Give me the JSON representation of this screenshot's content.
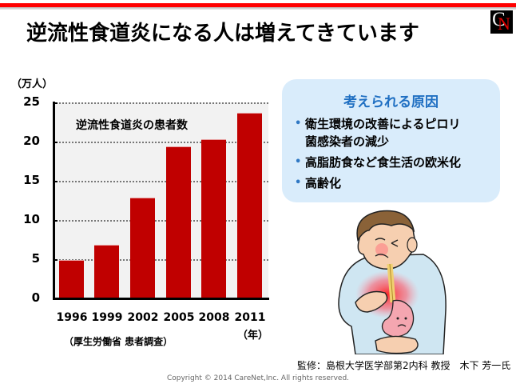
{
  "header": {
    "title": "逆流性食道炎になる人は増えてきています",
    "logo": {
      "letters": [
        "C",
        "N"
      ],
      "name": "CareNet logo"
    }
  },
  "chart": {
    "unit_label": "（万人）",
    "series_label": "逆流性食道炎の患者数",
    "x_unit_label": "（年）",
    "source": "（厚生労働省 患者調査）",
    "y_ticks": [
      "25",
      "20",
      "15",
      "10",
      "5",
      "0"
    ],
    "x_ticks": [
      "1996",
      "1999",
      "2002",
      "2005",
      "2008",
      "2011"
    ]
  },
  "chart_data": {
    "type": "bar",
    "title": "逆流性食道炎の患者数",
    "categories": [
      "1996",
      "1999",
      "2002",
      "2005",
      "2008",
      "2011"
    ],
    "values": [
      4.9,
      6.8,
      12.9,
      19.4,
      20.3,
      23.7
    ],
    "xlabel": "（年）",
    "ylabel": "（万人）",
    "ylim": [
      0,
      25
    ],
    "yticks": [
      0,
      5,
      10,
      15,
      20,
      25
    ],
    "grid": true,
    "bar_color": "#c00000",
    "source": "（厚生労働省 患者調査）"
  },
  "causes": {
    "title": "考えられる原因",
    "items": [
      {
        "line1": "衛生環境の改善によるピロリ",
        "line2": "菌感染者の減少"
      },
      {
        "line1": "高脂肪食など食生活の欧米化"
      },
      {
        "line1": "高齢化"
      }
    ],
    "bullet": "•"
  },
  "illustration": {
    "description": "man with heartburn clutching chest, stomach with sad face"
  },
  "footer": {
    "supervisor": "監修：島根大学医学部第2内科 教授　木下 芳一氏",
    "copyright": "Copyright © 2014 CareNet,Inc. All rights reserved."
  },
  "colors": {
    "accent_red": "#ff0000",
    "bar": "#c00000",
    "cause_box_bg": "#d9ecfb",
    "cause_title": "#1f6fc2"
  }
}
